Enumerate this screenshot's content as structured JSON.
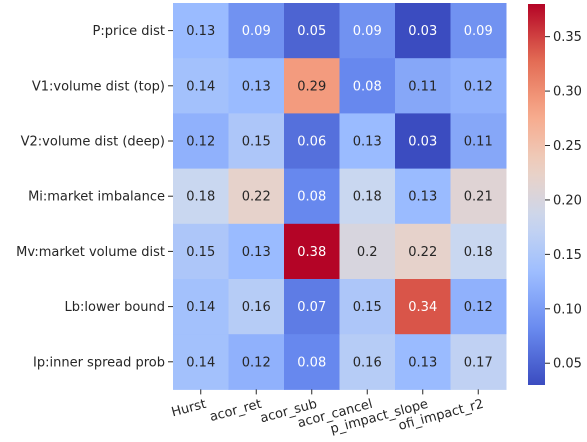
{
  "chart_data": {
    "type": "heatmap",
    "title": "",
    "xlabel": "",
    "ylabel": "",
    "rows": [
      "P:price dist",
      "V1:volume dist (top)",
      "V2:volume dist (deep)",
      "Mi:market imbalance",
      "Mv:market volume dist",
      "Lb:lower bound",
      "Ip:inner spread prob"
    ],
    "columns": [
      "Hurst",
      "acor_ret",
      "acor_sub",
      "acor_cancel",
      "p_impact_slope",
      "ofi_impact_r2"
    ],
    "values": [
      [
        0.13,
        0.09,
        0.05,
        0.09,
        0.03,
        0.09
      ],
      [
        0.14,
        0.13,
        0.29,
        0.08,
        0.11,
        0.12
      ],
      [
        0.12,
        0.15,
        0.06,
        0.13,
        0.03,
        0.11
      ],
      [
        0.18,
        0.22,
        0.08,
        0.18,
        0.13,
        0.21
      ],
      [
        0.15,
        0.13,
        0.38,
        0.2,
        0.22,
        0.18
      ],
      [
        0.14,
        0.16,
        0.07,
        0.15,
        0.34,
        0.12
      ],
      [
        0.14,
        0.12,
        0.08,
        0.16,
        0.13,
        0.17
      ]
    ],
    "colormap": "coolwarm",
    "vmin": 0.03,
    "vmax": 0.38,
    "colorbar": {
      "ticks": [
        0.05,
        0.1,
        0.15,
        0.2,
        0.25,
        0.3,
        0.35
      ],
      "tick_labels": [
        "0.05",
        "0.10",
        "0.15",
        "0.20",
        "0.25",
        "0.30",
        "0.35"
      ]
    },
    "cmap_stops": [
      "#3b4cc0",
      "#6788ee",
      "#9abbff",
      "#c9d7f0",
      "#edd1c2",
      "#f7a889",
      "#e26952",
      "#b40426"
    ]
  }
}
